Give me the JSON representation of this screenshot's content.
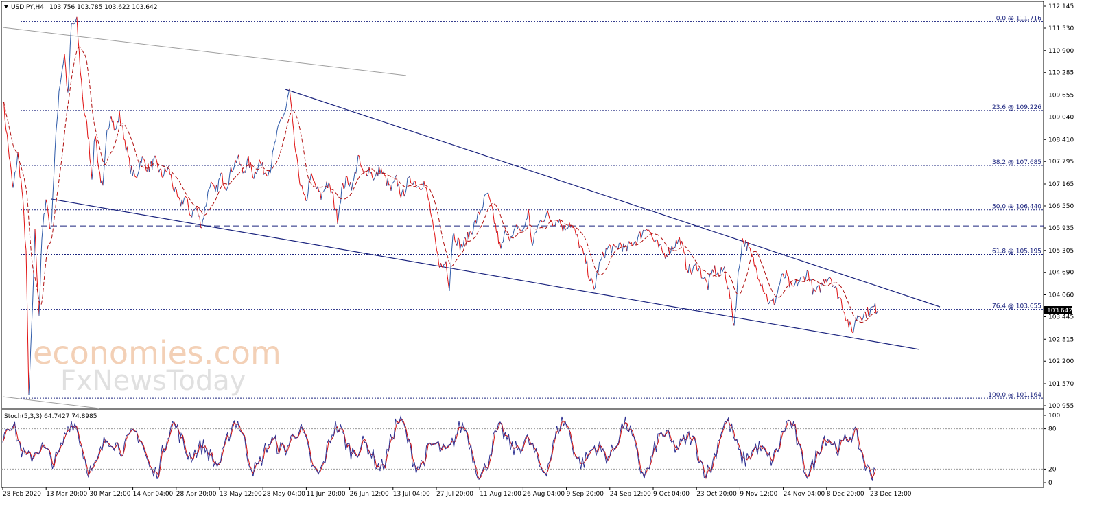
{
  "header": {
    "symbol_label": "USDJPY,H4",
    "ohlc_label": "103.756 103.785 103.622 103.642"
  },
  "stoch": {
    "label": "Stoch(5,3,3) 64.7427 74.8985"
  },
  "watermark": {
    "line1": "economies.com",
    "line2": "FxNewsToday"
  },
  "chart_data": {
    "type": "line",
    "symbol": "USDJPY",
    "timeframe": "H4",
    "ylim": [
      100.955,
      112.145
    ],
    "y_ticks": [
      "112.145",
      "111.530",
      "110.900",
      "110.285",
      "109.655",
      "109.040",
      "108.410",
      "107.795",
      "107.165",
      "106.550",
      "105.935",
      "105.305",
      "104.690",
      "104.060",
      "103.445",
      "102.815",
      "102.200",
      "101.570",
      "100.955"
    ],
    "x_ticks": [
      "28 Feb 2020",
      "13 Mar 20:00",
      "30 Mar 12:00",
      "14 Apr 04:00",
      "28 Apr 20:00",
      "13 May 12:00",
      "28 May 04:00",
      "11 Jun 20:00",
      "26 Jun 12:00",
      "13 Jul 04:00",
      "27 Jul 20:00",
      "11 Aug 12:00",
      "26 Aug 04:00",
      "9 Sep 20:00",
      "24 Sep 12:00",
      "9 Oct 04:00",
      "23 Oct 20:00",
      "9 Nov 12:00",
      "24 Nov 04:00",
      "8 Dec 20:00",
      "23 Dec 12:00"
    ],
    "current_price": "103.642",
    "fibonacci": [
      {
        "label": "0.0 @ 111.716",
        "value": 111.716
      },
      {
        "label": "23.6 @ 109.226",
        "value": 109.226
      },
      {
        "label": "38.2 @ 107.685",
        "value": 107.685
      },
      {
        "label": "50.0 @ 106.440",
        "value": 106.44
      },
      {
        "label": "61.8 @ 105.195",
        "value": 105.195
      },
      {
        "label": "76.4 @ 103.655",
        "value": 103.655
      },
      {
        "label": "100.0 @ 101.164",
        "value": 101.164
      }
    ],
    "dashed_level": 105.99,
    "price_path": [
      {
        "x": 0,
        "y": 109.6
      },
      {
        "x": 8,
        "y": 108.2
      },
      {
        "x": 15,
        "y": 107.0
      },
      {
        "x": 22,
        "y": 108.0
      },
      {
        "x": 28,
        "y": 107.0
      },
      {
        "x": 34,
        "y": 105.3
      },
      {
        "x": 38,
        "y": 101.2
      },
      {
        "x": 42,
        "y": 103.0
      },
      {
        "x": 47,
        "y": 105.8
      },
      {
        "x": 53,
        "y": 103.5
      },
      {
        "x": 57,
        "y": 105.6
      },
      {
        "x": 63,
        "y": 106.8
      },
      {
        "x": 70,
        "y": 105.8
      },
      {
        "x": 76,
        "y": 108.0
      },
      {
        "x": 82,
        "y": 109.8
      },
      {
        "x": 90,
        "y": 110.8
      },
      {
        "x": 95,
        "y": 109.6
      },
      {
        "x": 100,
        "y": 111.6
      },
      {
        "x": 108,
        "y": 111.7
      },
      {
        "x": 113,
        "y": 110.4
      },
      {
        "x": 118,
        "y": 109.3
      },
      {
        "x": 124,
        "y": 108.6
      },
      {
        "x": 130,
        "y": 107.4
      },
      {
        "x": 135,
        "y": 108.6
      },
      {
        "x": 140,
        "y": 107.6
      },
      {
        "x": 146,
        "y": 107.0
      },
      {
        "x": 152,
        "y": 108.6
      },
      {
        "x": 158,
        "y": 109.2
      },
      {
        "x": 164,
        "y": 108.6
      },
      {
        "x": 170,
        "y": 109.1
      },
      {
        "x": 178,
        "y": 108.4
      },
      {
        "x": 186,
        "y": 107.6
      },
      {
        "x": 194,
        "y": 107.3
      },
      {
        "x": 202,
        "y": 107.9
      },
      {
        "x": 212,
        "y": 107.6
      },
      {
        "x": 222,
        "y": 107.8
      },
      {
        "x": 232,
        "y": 107.4
      },
      {
        "x": 242,
        "y": 107.6
      },
      {
        "x": 250,
        "y": 107.0
      },
      {
        "x": 258,
        "y": 106.6
      },
      {
        "x": 266,
        "y": 106.8
      },
      {
        "x": 274,
        "y": 106.3
      },
      {
        "x": 282,
        "y": 106.5
      },
      {
        "x": 290,
        "y": 106.0
      },
      {
        "x": 296,
        "y": 106.6
      },
      {
        "x": 302,
        "y": 107.2
      },
      {
        "x": 310,
        "y": 106.9
      },
      {
        "x": 318,
        "y": 107.4
      },
      {
        "x": 326,
        "y": 107.1
      },
      {
        "x": 334,
        "y": 107.6
      },
      {
        "x": 342,
        "y": 107.9
      },
      {
        "x": 350,
        "y": 107.5
      },
      {
        "x": 358,
        "y": 107.8
      },
      {
        "x": 366,
        "y": 107.4
      },
      {
        "x": 374,
        "y": 107.8
      },
      {
        "x": 382,
        "y": 107.5
      },
      {
        "x": 390,
        "y": 107.6
      },
      {
        "x": 398,
        "y": 108.4
      },
      {
        "x": 406,
        "y": 109.0
      },
      {
        "x": 412,
        "y": 109.2
      },
      {
        "x": 418,
        "y": 109.8
      },
      {
        "x": 424,
        "y": 108.5
      },
      {
        "x": 430,
        "y": 107.6
      },
      {
        "x": 436,
        "y": 107.0
      },
      {
        "x": 442,
        "y": 106.6
      },
      {
        "x": 448,
        "y": 107.4
      },
      {
        "x": 456,
        "y": 107.1
      },
      {
        "x": 464,
        "y": 106.8
      },
      {
        "x": 472,
        "y": 107.2
      },
      {
        "x": 480,
        "y": 106.9
      },
      {
        "x": 488,
        "y": 106.2
      },
      {
        "x": 494,
        "y": 107.0
      },
      {
        "x": 502,
        "y": 107.3
      },
      {
        "x": 510,
        "y": 107.1
      },
      {
        "x": 518,
        "y": 107.9
      },
      {
        "x": 526,
        "y": 107.4
      },
      {
        "x": 534,
        "y": 107.6
      },
      {
        "x": 542,
        "y": 107.3
      },
      {
        "x": 550,
        "y": 107.6
      },
      {
        "x": 558,
        "y": 107.3
      },
      {
        "x": 566,
        "y": 107.0
      },
      {
        "x": 574,
        "y": 107.3
      },
      {
        "x": 582,
        "y": 106.8
      },
      {
        "x": 590,
        "y": 107.2
      },
      {
        "x": 598,
        "y": 107.3
      },
      {
        "x": 606,
        "y": 107.1
      },
      {
        "x": 614,
        "y": 107.2
      },
      {
        "x": 622,
        "y": 106.6
      },
      {
        "x": 628,
        "y": 105.8
      },
      {
        "x": 634,
        "y": 105.1
      },
      {
        "x": 640,
        "y": 104.8
      },
      {
        "x": 646,
        "y": 105.0
      },
      {
        "x": 651,
        "y": 104.3
      },
      {
        "x": 656,
        "y": 105.8
      },
      {
        "x": 662,
        "y": 105.6
      },
      {
        "x": 668,
        "y": 105.4
      },
      {
        "x": 676,
        "y": 105.6
      },
      {
        "x": 684,
        "y": 105.9
      },
      {
        "x": 692,
        "y": 106.2
      },
      {
        "x": 700,
        "y": 106.6
      },
      {
        "x": 706,
        "y": 106.9
      },
      {
        "x": 712,
        "y": 106.5
      },
      {
        "x": 718,
        "y": 106.0
      },
      {
        "x": 726,
        "y": 105.3
      },
      {
        "x": 734,
        "y": 105.9
      },
      {
        "x": 742,
        "y": 105.6
      },
      {
        "x": 750,
        "y": 106.0
      },
      {
        "x": 758,
        "y": 105.8
      },
      {
        "x": 766,
        "y": 106.4
      },
      {
        "x": 772,
        "y": 105.4
      },
      {
        "x": 778,
        "y": 105.9
      },
      {
        "x": 786,
        "y": 106.2
      },
      {
        "x": 794,
        "y": 106.3
      },
      {
        "x": 802,
        "y": 106.1
      },
      {
        "x": 810,
        "y": 106.2
      },
      {
        "x": 818,
        "y": 105.9
      },
      {
        "x": 826,
        "y": 106.1
      },
      {
        "x": 834,
        "y": 105.8
      },
      {
        "x": 842,
        "y": 105.4
      },
      {
        "x": 850,
        "y": 105.0
      },
      {
        "x": 856,
        "y": 104.5
      },
      {
        "x": 862,
        "y": 104.2
      },
      {
        "x": 868,
        "y": 104.8
      },
      {
        "x": 876,
        "y": 105.2
      },
      {
        "x": 884,
        "y": 105.4
      },
      {
        "x": 892,
        "y": 105.3
      },
      {
        "x": 900,
        "y": 105.5
      },
      {
        "x": 908,
        "y": 105.3
      },
      {
        "x": 916,
        "y": 105.5
      },
      {
        "x": 924,
        "y": 105.6
      },
      {
        "x": 932,
        "y": 105.8
      },
      {
        "x": 940,
        "y": 106.0
      },
      {
        "x": 948,
        "y": 105.6
      },
      {
        "x": 956,
        "y": 105.4
      },
      {
        "x": 964,
        "y": 105.2
      },
      {
        "x": 972,
        "y": 105.3
      },
      {
        "x": 980,
        "y": 105.5
      },
      {
        "x": 988,
        "y": 105.6
      },
      {
        "x": 996,
        "y": 104.9
      },
      {
        "x": 1004,
        "y": 104.7
      },
      {
        "x": 1012,
        "y": 104.9
      },
      {
        "x": 1020,
        "y": 104.6
      },
      {
        "x": 1028,
        "y": 104.3
      },
      {
        "x": 1036,
        "y": 104.8
      },
      {
        "x": 1044,
        "y": 104.6
      },
      {
        "x": 1052,
        "y": 104.8
      },
      {
        "x": 1060,
        "y": 104.0
      },
      {
        "x": 1066,
        "y": 103.2
      },
      {
        "x": 1072,
        "y": 104.6
      },
      {
        "x": 1078,
        "y": 105.6
      },
      {
        "x": 1086,
        "y": 105.4
      },
      {
        "x": 1094,
        "y": 105.0
      },
      {
        "x": 1102,
        "y": 104.6
      },
      {
        "x": 1110,
        "y": 104.2
      },
      {
        "x": 1118,
        "y": 103.8
      },
      {
        "x": 1126,
        "y": 103.9
      },
      {
        "x": 1134,
        "y": 104.5
      },
      {
        "x": 1142,
        "y": 104.6
      },
      {
        "x": 1150,
        "y": 104.2
      },
      {
        "x": 1158,
        "y": 104.4
      },
      {
        "x": 1166,
        "y": 104.5
      },
      {
        "x": 1174,
        "y": 104.7
      },
      {
        "x": 1182,
        "y": 104.1
      },
      {
        "x": 1190,
        "y": 104.2
      },
      {
        "x": 1198,
        "y": 104.5
      },
      {
        "x": 1206,
        "y": 104.6
      },
      {
        "x": 1214,
        "y": 104.2
      },
      {
        "x": 1222,
        "y": 103.9
      },
      {
        "x": 1230,
        "y": 103.4
      },
      {
        "x": 1238,
        "y": 103.0
      },
      {
        "x": 1246,
        "y": 103.5
      },
      {
        "x": 1254,
        "y": 103.5
      },
      {
        "x": 1262,
        "y": 103.6
      },
      {
        "x": 1270,
        "y": 103.7
      },
      {
        "x": 1276,
        "y": 103.64
      }
    ],
    "stoch_ylim": [
      0,
      100
    ],
    "stoch_levels": [
      20,
      80
    ],
    "stoch_ticks": [
      "100",
      "80",
      "20",
      "0"
    ],
    "colors": {
      "price_up": "#2e5aa8",
      "price_down": "#e01010",
      "moving_average": "#b01010",
      "trendline": "#1a237e",
      "fib": "#1a237e",
      "stoch_main": "#2e3192",
      "stoch_signal": "#d01010"
    }
  }
}
